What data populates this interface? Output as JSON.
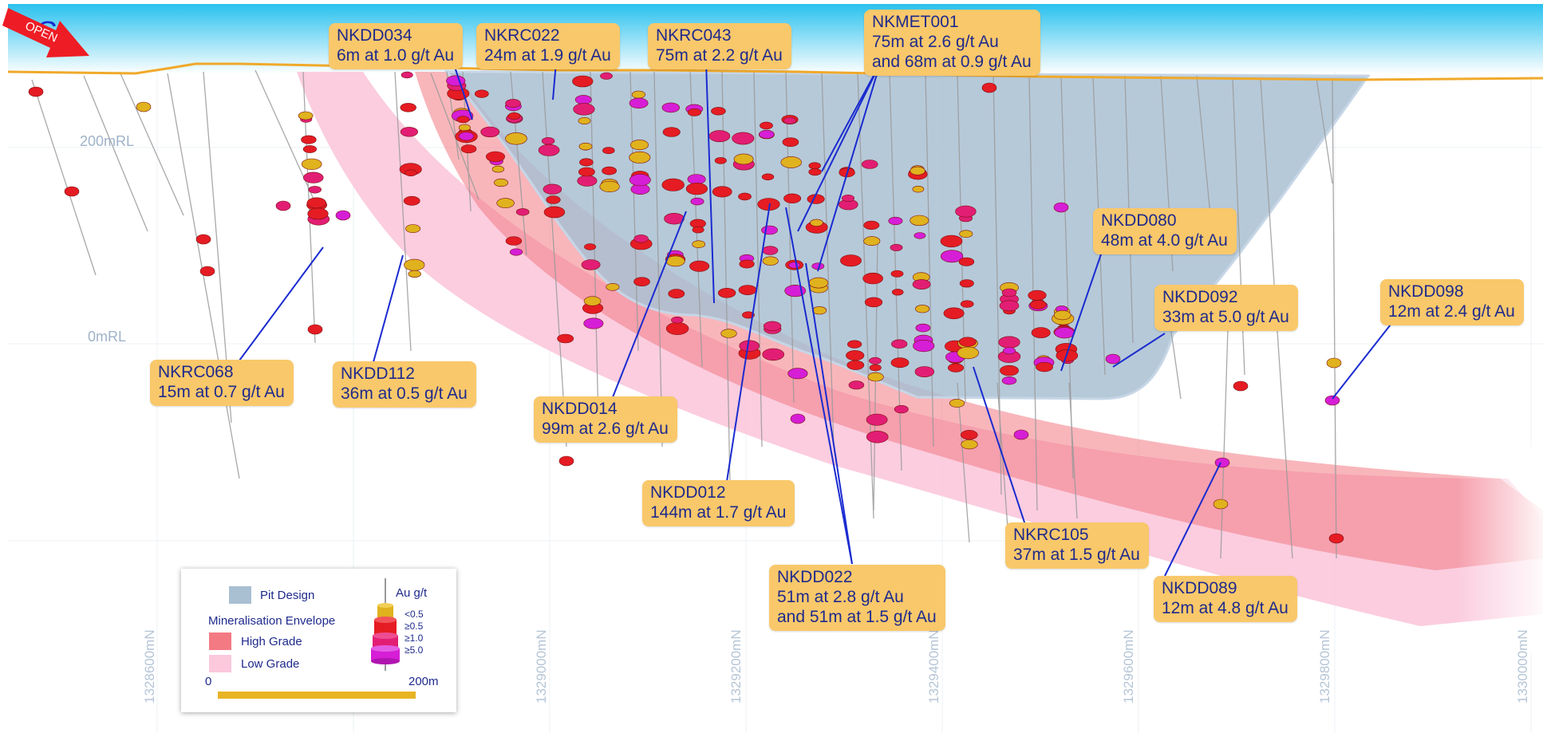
{
  "section_letter": "S",
  "elevation_labels": [
    "200mRL",
    "0mRL"
  ],
  "northings": [
    "1328600mN",
    "1329000mN",
    "1329200mN",
    "1329400mN",
    "1329600mN",
    "1329800mN",
    "1330000mN"
  ],
  "callouts": [
    {
      "hole": "NKDD034",
      "lines": [
        "6m at 1.0 g/t Au"
      ]
    },
    {
      "hole": "NKRC022",
      "lines": [
        "24m at 1.9 g/t Au"
      ]
    },
    {
      "hole": "NKRC043",
      "lines": [
        "75m at 2.2 g/t Au"
      ]
    },
    {
      "hole": "NKMET001",
      "lines": [
        "75m at 2.6 g/t Au",
        "and 68m at 0.9 g/t Au"
      ]
    },
    {
      "hole": "NKDD080",
      "lines": [
        "48m at 4.0 g/t Au"
      ]
    },
    {
      "hole": "NKDD092",
      "lines": [
        "33m at 5.0 g/t Au"
      ]
    },
    {
      "hole": "NKDD098",
      "lines": [
        "12m at 2.4 g/t Au"
      ]
    },
    {
      "hole": "NKRC068",
      "lines": [
        "15m at 0.7 g/t Au"
      ]
    },
    {
      "hole": "NKDD112",
      "lines": [
        "36m at 0.5 g/t Au"
      ]
    },
    {
      "hole": "NKDD014",
      "lines": [
        "99m at 2.6 g/t Au"
      ]
    },
    {
      "hole": "NKDD012",
      "lines": [
        "144m at 1.7 g/t Au"
      ]
    },
    {
      "hole": "NKDD022",
      "lines": [
        "51m at 2.8 g/t Au",
        "and 51m at 1.5 g/t Au"
      ]
    },
    {
      "hole": "NKRC105",
      "lines": [
        "37m at 1.5 g/t Au"
      ]
    },
    {
      "hole": "NKDD089",
      "lines": [
        "12m at 4.8 g/t Au"
      ]
    }
  ],
  "legend": {
    "pit_design": "Pit Design",
    "mineralisation_envelope": "Mineralisation Envelope",
    "high_grade": "High Grade",
    "low_grade": "Low Grade",
    "grade_title": "Au g/t",
    "grade_bins": [
      "<0.5",
      "≥0.5",
      "≥1.0",
      "≥5.0"
    ],
    "scale_start": "0",
    "scale_end": "200m"
  },
  "open_label": "OPEN",
  "colors": {
    "callout_fill": "#f9c86a",
    "callout_text": "#1f2a8c",
    "leader_line": "#1a2bd0",
    "pit_design": "#a9bfd2",
    "high_grade": "#f37a83",
    "low_grade": "#fbc8dc",
    "surface": "#f0a92a",
    "grade_lt_0_5": "#e0b21e",
    "grade_ge_0_5": "#e51c23",
    "grade_ge_1_0": "#e21e74",
    "grade_ge_5_0": "#d61ed6",
    "sky": "#29c1ee"
  }
}
